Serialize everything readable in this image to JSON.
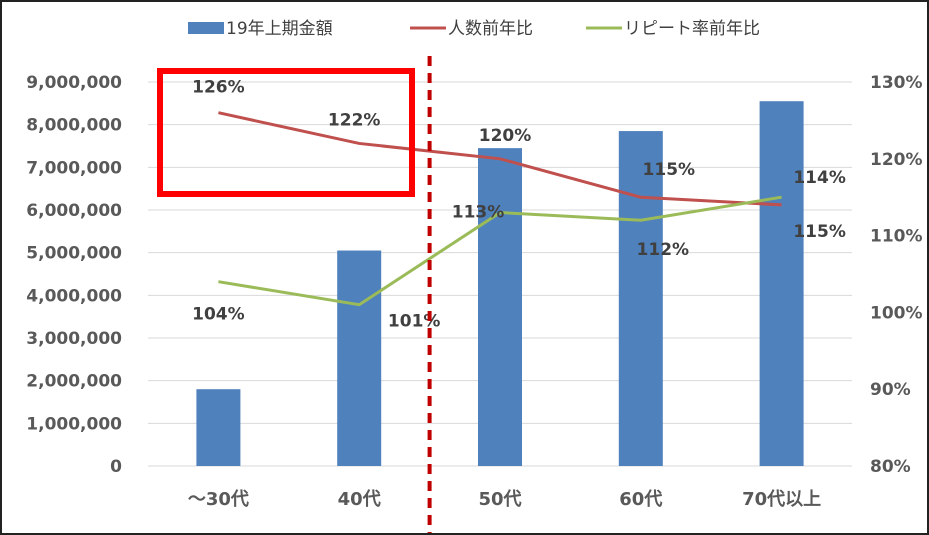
{
  "chart_data": {
    "type": "bar",
    "categories": [
      "～30代",
      "40代",
      "50代",
      "60代",
      "70代以上"
    ],
    "series": [
      {
        "name": "19年上期金額",
        "kind": "bar",
        "axis": "left",
        "color": "#4f81bd",
        "values": [
          1800000,
          5050000,
          7450000,
          7850000,
          8550000
        ]
      },
      {
        "name": "人数前年比",
        "kind": "line",
        "axis": "right",
        "color": "#c0504d",
        "values": [
          126,
          122,
          120,
          115,
          114
        ],
        "labels": [
          "126%",
          "122%",
          "120%",
          "115%",
          "114%"
        ]
      },
      {
        "name": "リピート率前年比",
        "kind": "line",
        "axis": "right",
        "color": "#9bbb59",
        "values": [
          104,
          101,
          113,
          112,
          115
        ],
        "labels": [
          "104%",
          "101%",
          "113%",
          "112%",
          "115%"
        ]
      }
    ],
    "y_left": {
      "ylim": [
        0,
        9000000
      ],
      "ticks": [
        "0",
        "1,000,000",
        "2,000,000",
        "3,000,000",
        "4,000,000",
        "5,000,000",
        "6,000,000",
        "7,000,000",
        "8,000,000",
        "9,000,000"
      ]
    },
    "y_right": {
      "ylim": [
        80,
        130
      ],
      "ticks": [
        "80%",
        "90%",
        "100%",
        "110%",
        "120%",
        "130%"
      ]
    },
    "grid": true,
    "legend": "top",
    "annotations": {
      "highlight_box": {
        "color": "#ff0000",
        "spans_categories": [
          "～30代",
          "40代"
        ]
      },
      "divider_line": {
        "color": "#c00000",
        "style": "dashed",
        "between": [
          "40代",
          "50代"
        ]
      }
    }
  }
}
